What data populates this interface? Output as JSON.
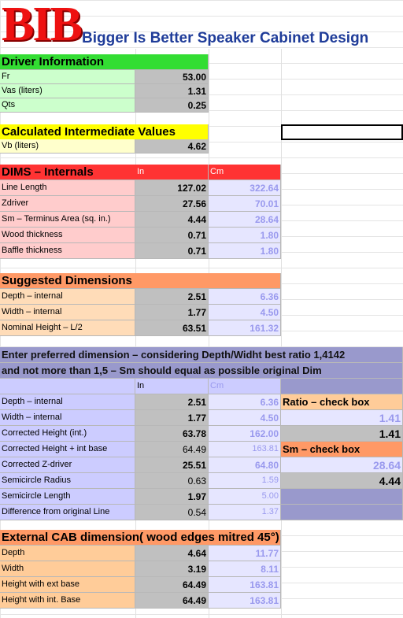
{
  "header": {
    "logo": "BIB",
    "title": "Bigger Is Better Speaker Cabinet Design"
  },
  "driver": {
    "title": "Driver Information",
    "rows": [
      [
        "Fr",
        "53.00"
      ],
      [
        "Vas (liters)",
        "1.31"
      ],
      [
        "Qts",
        "0.25"
      ]
    ]
  },
  "intermediate": {
    "title": "Calculated Intermediate Values",
    "rows": [
      [
        "Vb (liters)",
        "4.62"
      ]
    ]
  },
  "internals": {
    "title": "DIMS – Internals",
    "unit_in": "In",
    "unit_cm": "Cm",
    "rows": [
      [
        "Line Length",
        "127.02",
        "322.64"
      ],
      [
        "Zdriver",
        "27.56",
        "70.01"
      ],
      [
        "Sm – Terminus Area (sq. in.)",
        "4.44",
        "28.64"
      ],
      [
        "Wood thickness",
        "0.71",
        "1.80"
      ],
      [
        "Baffle thickness",
        "0.71",
        "1.80"
      ]
    ]
  },
  "suggested": {
    "title": "Suggested Dimensions",
    "rows": [
      [
        "Depth – internal",
        "2.51",
        "6.36"
      ],
      [
        "Width – internal",
        "1.77",
        "4.50"
      ],
      [
        "Nominal Height – L/2",
        "63.51",
        "161.32"
      ]
    ]
  },
  "preferred": {
    "title_lines": [
      "Enter preferred dimension – considering Depth/Widht best ratio 1,4142",
      "and not more than 1,5 – Sm should equal as possible original Dim"
    ],
    "unit_in": "In",
    "unit_cm": "Cm",
    "rows": [
      [
        "Depth – internal",
        "2.51",
        "6.36"
      ],
      [
        "Width – internal",
        "1.77",
        "4.50"
      ],
      [
        "Corrected Height (int.)",
        "63.78",
        "162.00"
      ],
      [
        "Corrected Height + int base",
        "64.49",
        "163.81"
      ],
      [
        "Corrected Z-driver",
        "25.51",
        "64.80"
      ],
      [
        "Semicircle Radius",
        "0.63",
        "1.59"
      ],
      [
        "Semicircle Length",
        "1.97",
        "5.00"
      ],
      [
        "Difference from original Line",
        "0.54",
        "1.37"
      ]
    ],
    "ratio_check": {
      "title": "Ratio – check box",
      "values": [
        "1.41",
        "1.41"
      ]
    },
    "sm_check": {
      "title": "Sm – check box",
      "values": [
        "28.64",
        "4.44"
      ]
    }
  },
  "external": {
    "title": "External CAB dimension( wood edges mitred 45°)",
    "rows": [
      [
        "Depth",
        "4.64",
        "11.77"
      ],
      [
        "Width",
        "3.19",
        "8.11"
      ],
      [
        "Height with ext base",
        "64.49",
        "163.81"
      ],
      [
        "Height with int. Base",
        "64.49",
        "163.81"
      ]
    ]
  }
}
